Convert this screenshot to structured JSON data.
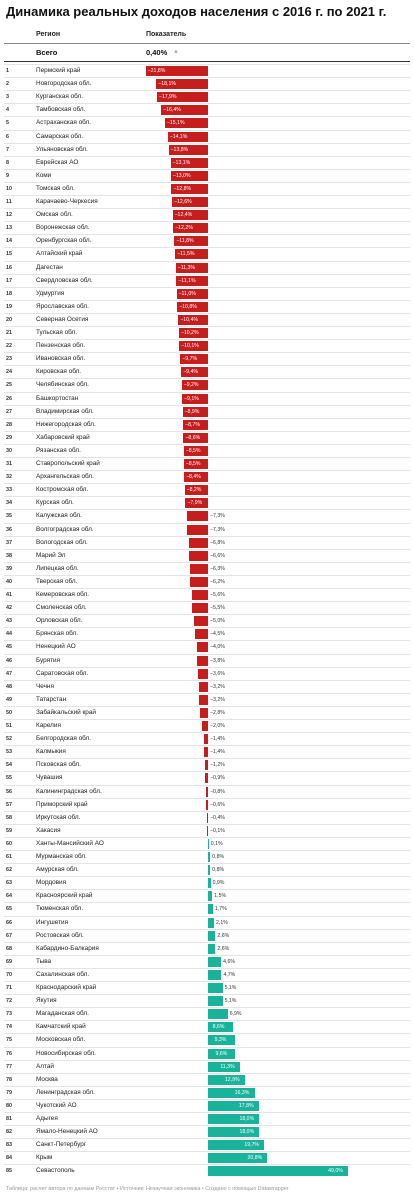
{
  "title": "Динамика реальных доходов населения с 2016 г. по 2021 г.",
  "header": {
    "region_col": "Регион",
    "value_col": "Показатель"
  },
  "total": {
    "label": "Всего",
    "value": "0,40%",
    "sort_arrow": "▲"
  },
  "footer": "Таблица: расчет автора по данным Росстат • Источник: Незаучная экономика • Создано с помощью Datawrapper",
  "colors": {
    "negative": "#c61d1d",
    "positive": "#19b39b"
  },
  "chart_data": {
    "type": "bar",
    "title": "Динамика реальных доходов населения с 2016 г. по 2021 г.",
    "xlabel": "",
    "ylabel": "Показатель",
    "xlim": [
      -21.8,
      49.0
    ],
    "categories": [
      "Пермский край",
      "Новгородская обл.",
      "Курганская обл.",
      "Тамбовская обл.",
      "Астраханская обл.",
      "Самарская обл.",
      "Ульяновская обл.",
      "Еврейская АО",
      "Коми",
      "Томская обл.",
      "Карачаево-Черкесия",
      "Омская обл.",
      "Воронежская обл.",
      "Оренбургская обл.",
      "Алтайский край",
      "Дагестан",
      "Свердловская обл.",
      "Удмуртия",
      "Ярославская обл.",
      "Северная Осетия",
      "Тульская обл.",
      "Пензенская обл.",
      "Ивановская обл.",
      "Кировская обл.",
      "Челябинская обл.",
      "Башкортостан",
      "Владимирская обл.",
      "Нижегородская обл.",
      "Хабаровский край",
      "Рязанская обл.",
      "Ставропольский край",
      "Архангельская обл.",
      "Костромская обл.",
      "Курская обл.",
      "Калужская обл.",
      "Волгоградская обл.",
      "Вологодская обл.",
      "Марий Эл",
      "Липецкая обл.",
      "Тверская обл.",
      "Кемеровская обл.",
      "Смоленская обл.",
      "Орловская обл.",
      "Брянская обл.",
      "Ненецкий АО",
      "Бурятия",
      "Саратовская обл.",
      "Чечня",
      "Татарстан",
      "Забайкальский край",
      "Карелия",
      "Белгородская обл.",
      "Калмыкия",
      "Псковская обл.",
      "Чувашия",
      "Калининградская обл.",
      "Приморский край",
      "Иркутская обл.",
      "Хакасия",
      "Ханты-Мансийский АО",
      "Мурманская обл.",
      "Амурская обл.",
      "Мордовия",
      "Красноярский край",
      "Тюменская обл.",
      "Ингушетия",
      "Ростовская обл.",
      "Кабардино-Балкария",
      "Тыва",
      "Сахалинская обл.",
      "Краснодарский край",
      "Якутия",
      "Магаданская обл.",
      "Камчатский край",
      "Московская обл.",
      "Новосибирская обл.",
      "Алтай",
      "Москва",
      "Ленинградская обл.",
      "Чукотский АО",
      "Адыгея",
      "Ямало-Ненецкий АО",
      "Санкт-Петербург",
      "Крым",
      "Севастополь"
    ],
    "values": [
      -21.8,
      -18.1,
      -17.9,
      -16.4,
      -15.1,
      -14.1,
      -13.8,
      -13.1,
      -13.0,
      -12.8,
      -12.6,
      -12.4,
      -12.2,
      -11.8,
      -11.5,
      -11.3,
      -11.1,
      -11.0,
      -10.8,
      -10.4,
      -10.2,
      -10.1,
      -9.7,
      -9.4,
      -9.2,
      -9.1,
      -8.9,
      -8.7,
      -8.6,
      -8.5,
      -8.5,
      -8.4,
      -8.2,
      -7.9,
      -7.3,
      -7.3,
      -6.8,
      -6.6,
      -6.3,
      -6.2,
      -5.6,
      -5.5,
      -5.0,
      -4.5,
      -4.0,
      -3.8,
      -3.6,
      -3.2,
      -3.2,
      -2.8,
      -2.0,
      -1.4,
      -1.4,
      -1.2,
      -0.9,
      -0.8,
      -0.6,
      -0.4,
      -0.1,
      0.1,
      0.8,
      0.8,
      0.9,
      1.5,
      1.7,
      2.1,
      2.6,
      2.6,
      4.6,
      4.7,
      5.1,
      5.1,
      6.9,
      8.6,
      9.3,
      9.6,
      11.3,
      12.9,
      16.3,
      17.8,
      18.0,
      18.0,
      19.7,
      20.8,
      49.0
    ]
  }
}
